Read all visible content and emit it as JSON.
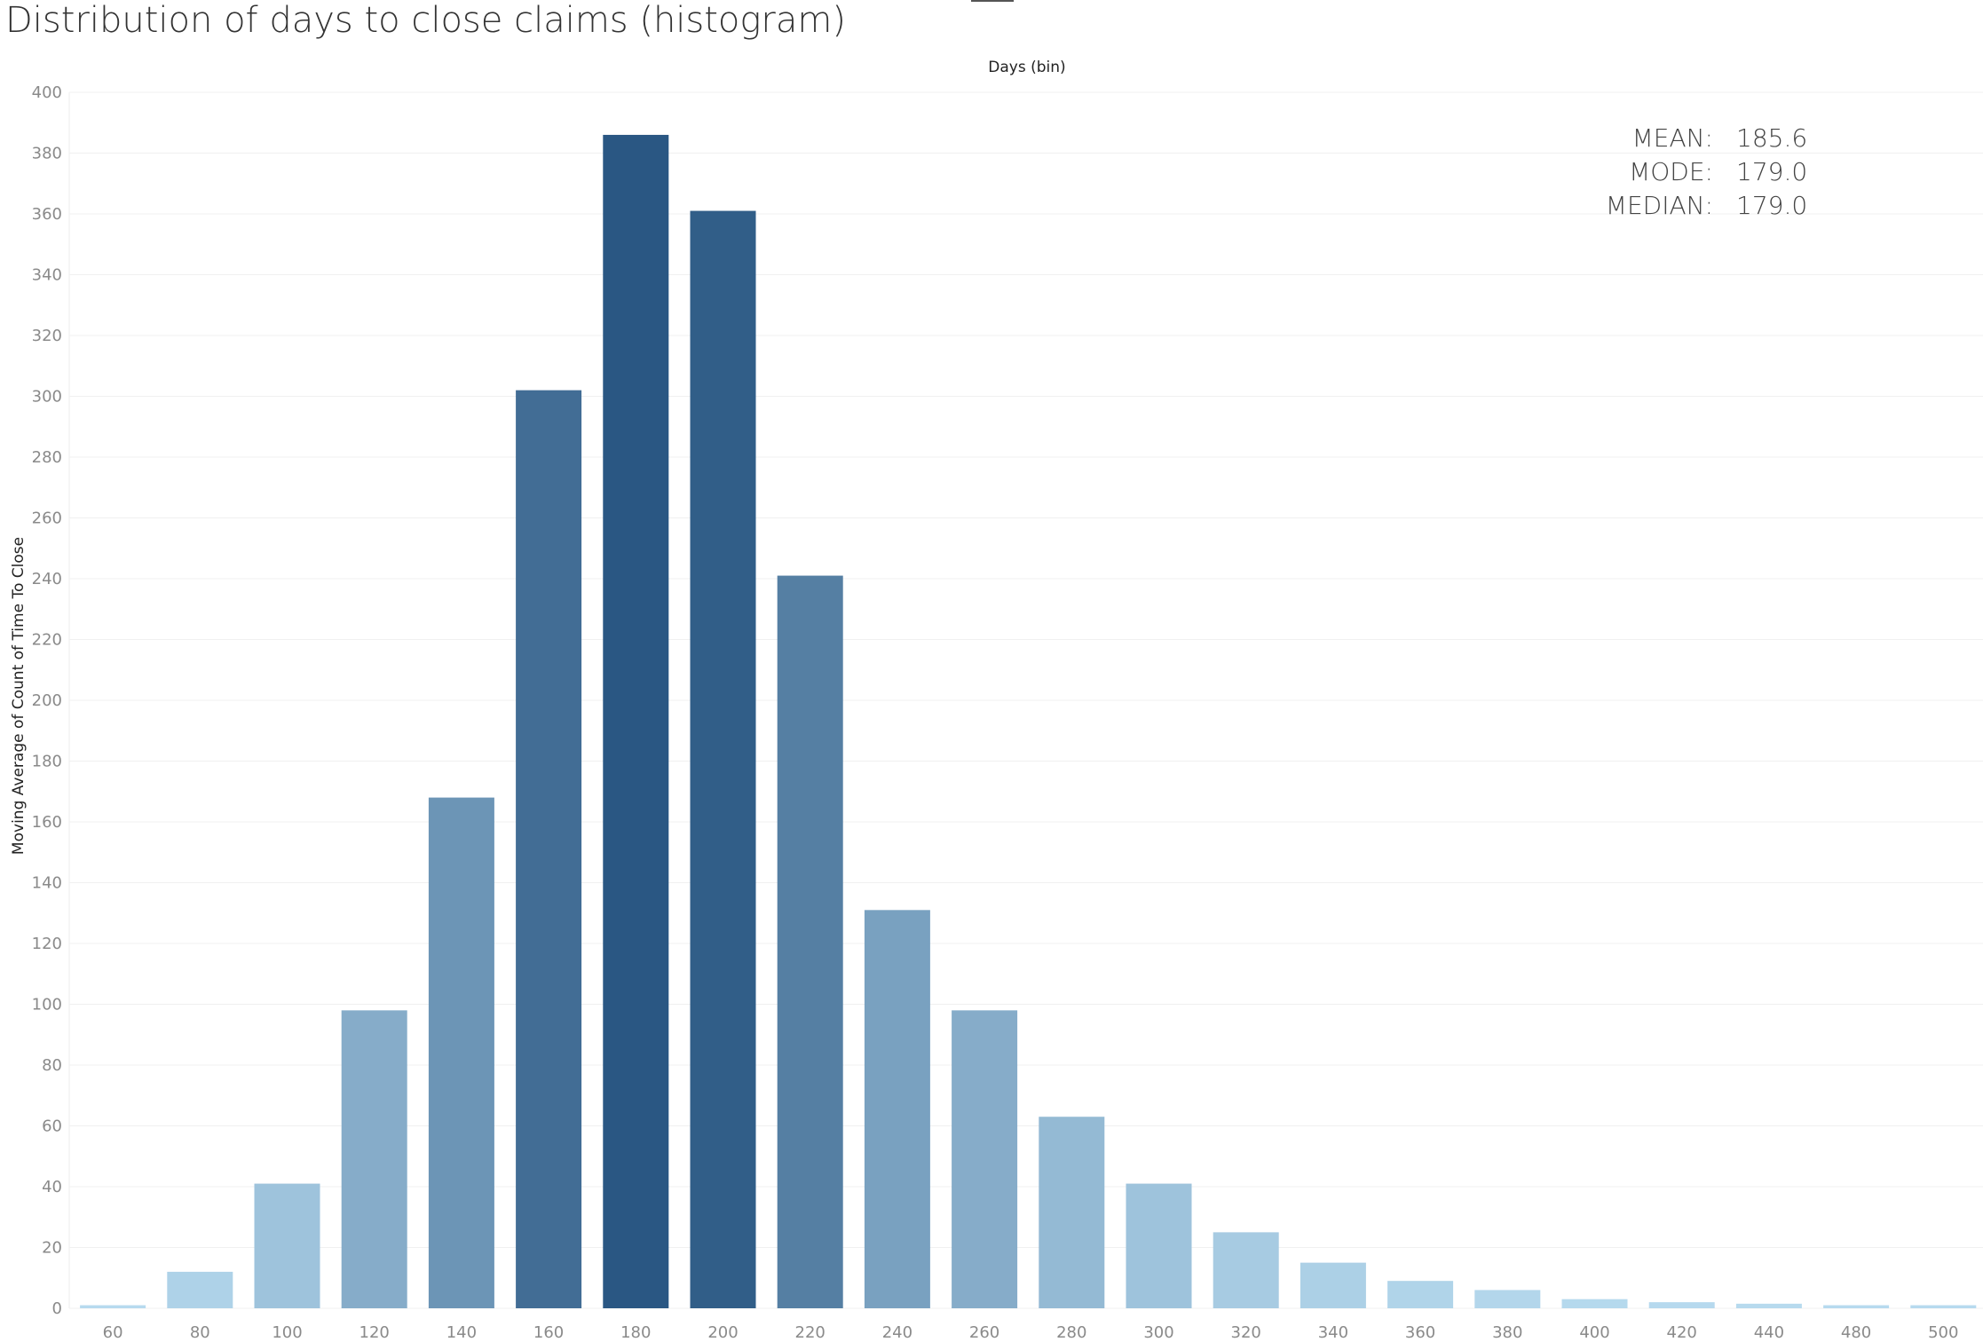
{
  "chart_data": {
    "type": "bar",
    "title": "Distribution of days to close claims (histogram)",
    "xlabel": "Days (bin)",
    "ylabel": "Moving Average of Count of Time To Close",
    "ylim": [
      0,
      400
    ],
    "y_ticks": [
      0,
      20,
      40,
      60,
      80,
      100,
      120,
      140,
      160,
      180,
      200,
      220,
      240,
      260,
      280,
      300,
      320,
      340,
      360,
      380,
      400
    ],
    "grid": true,
    "categories": [
      "60",
      "80",
      "100",
      "120",
      "140",
      "160",
      "180",
      "200",
      "220",
      "240",
      "260",
      "280",
      "300",
      "320",
      "340",
      "360",
      "380",
      "400",
      "420",
      "440",
      "480",
      "500"
    ],
    "values": [
      1,
      12,
      41,
      98,
      168,
      302,
      386,
      361,
      241,
      131,
      98,
      63,
      41,
      25,
      15,
      9,
      6,
      3,
      2,
      1.5,
      1,
      1
    ],
    "color_scale": {
      "low": "#b9dcf0",
      "high": "#2a5783"
    },
    "stats": [
      {
        "label": "MEAN:",
        "value": "185.6"
      },
      {
        "label": "MODE:",
        "value": "179.0"
      },
      {
        "label": "MEDIAN:",
        "value": "179.0"
      }
    ]
  }
}
